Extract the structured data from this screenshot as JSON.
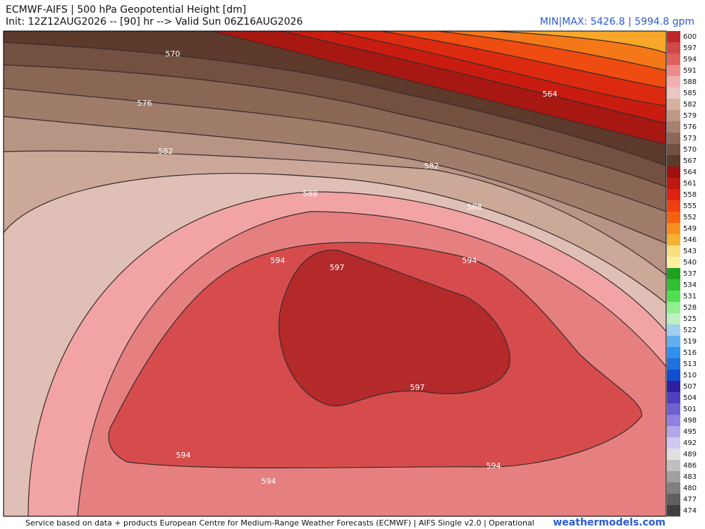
{
  "header": {
    "title": "ECMWF-AIFS | 500 hPa Geopotential Height [dm]",
    "init": "Init: 12Z12AUG2026 -- [90] hr --> Valid Sun 06Z16AUG2026",
    "min_max": "MIN|MAX: 5426.8 | 5994.8 gpm"
  },
  "contour_labels": [
    570,
    576,
    582,
    582,
    588,
    588,
    594,
    597,
    594,
    597,
    594,
    594,
    594,
    564
  ],
  "colorbar": {
    "levels": [
      600,
      597,
      594,
      591,
      588,
      585,
      582,
      579,
      576,
      573,
      570,
      567,
      564,
      561,
      558,
      555,
      552,
      549,
      546,
      543,
      540,
      537,
      534,
      531,
      528,
      525,
      522,
      519,
      516,
      513,
      510,
      507,
      504,
      501,
      498,
      495,
      492,
      489,
      486,
      483,
      480,
      477,
      474
    ],
    "colors": [
      "#c02828",
      "#d04848",
      "#e06060",
      "#ee8c8c",
      "#f4b0b0",
      "#e8c8c0",
      "#d8b0a0",
      "#c09888",
      "#a88070",
      "#8c6858",
      "#745040",
      "#5a3a2a",
      "#a01010",
      "#c01810",
      "#e02010",
      "#f04010",
      "#f86010",
      "#f89020",
      "#f8b030",
      "#f8e080",
      "#fff0a0",
      "#20a020",
      "#30c030",
      "#50e050",
      "#90f090",
      "#c0f0c0",
      "#a0d0f0",
      "#60b0f0",
      "#3090f0",
      "#2070e0",
      "#1050d0",
      "#3020a0",
      "#5040c0",
      "#7060d0",
      "#9080e0",
      "#b0a8e8",
      "#d0c8f0",
      "#e0e0e0",
      "#c0c0c0",
      "#a0a0a0",
      "#808080",
      "#606060",
      "#404040"
    ]
  },
  "footer": {
    "credit": "Service based on data + products European Centre for Medium-Range Weather Forecasts (ECMWF) | AIFS Single v2.0 | Operational",
    "brand": "weathermodels.com"
  }
}
